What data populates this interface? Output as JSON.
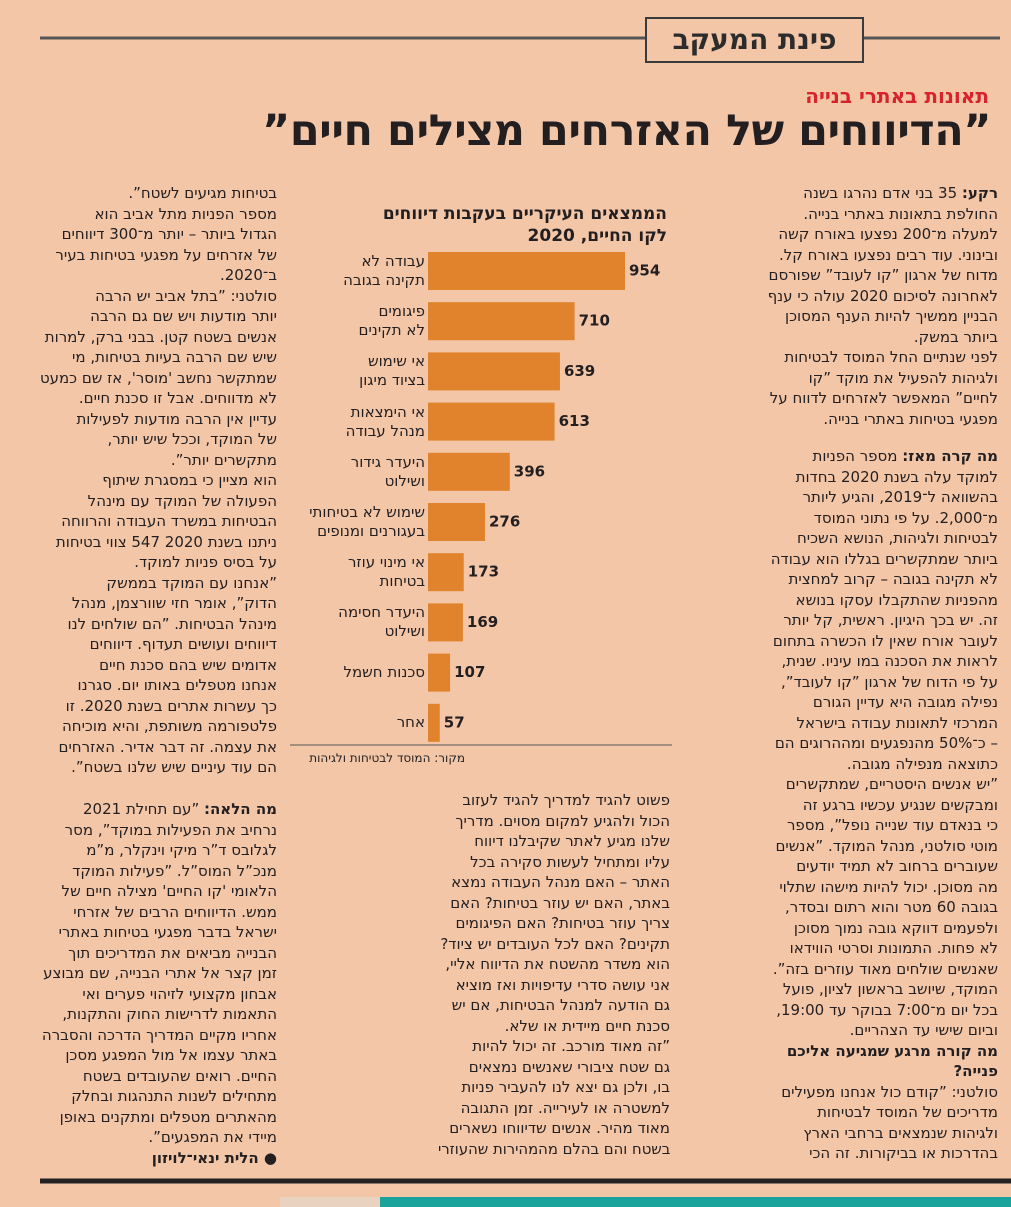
{
  "header": {
    "section": "פינת המעקב",
    "kicker": "תאונות באתרי בנייה",
    "headline": "”הדיווחים של האזרחים מצילים חיים”"
  },
  "chart_data": {
    "type": "bar",
    "orientation": "horizontal",
    "title": "הממצאים העיקריים בעקבות דיווחים\nלקו החיים, 2020",
    "categories": [
      "עבודה לא\nתקינה בגובה",
      "פיגומים\nלא תקינים",
      "אי שימוש\nבציוד מיגון",
      "אי הימצאות\nמנהל עבודה",
      "היעדר גידור\nושילוט",
      "שימוש לא בטיחותי\nבעגורנים ומנופים",
      "אי מינוי עוזר\nבטיחות",
      "היעדר חסימה\nושילוט",
      "סכנות חשמל",
      "אחר"
    ],
    "values": [
      954,
      710,
      639,
      613,
      396,
      276,
      173,
      169,
      107,
      57
    ],
    "color": "#e0832c",
    "source": "מקור: המוסד לבטיחות ולגיהות"
  },
  "columns": {
    "right": [
      {
        "lead": "רקע:",
        "text": " 35 בני אדם נהרגו בשנה"
      },
      "החולפת בתאונות באתרי בנייה.",
      "למעלה מ־200 נפצעו באורח קשה",
      "ובינוני. עוד רבים נפצעו באורח קל.",
      "מדוח של ארגון ”קו לעובד” שפורסם",
      "לאחרונה לסיכום 2020 עולה כי ענף",
      "הבניין ממשיך להיות הענף המסוכן",
      "ביותר במשק.",
      "לפני שנתיים החל המוסד לבטיחות",
      "ולגיהות להפעיל את מוקד ”קו",
      "לחיים” המאפשר לאזרחים לדווח על",
      "מפגעי בטיחות באתרי בנייה.",
      {
        "lead": "מה קרה מאז:",
        "text": " מספר הפניות"
      },
      "למוקד עלה בשנת 2020 בחדות",
      "בהשוואה ל־2019, והגיע ליותר",
      "מ־2,000. על פי נתוני המוסד",
      "לבטיחות ולגיהות, הנושא השכיח",
      "ביותר שמתקשרים בגללו הוא עבודה",
      "לא תקינה בגובה – קרוב למחצית",
      "מהפניות שהתקבלו עסקו בנושא",
      "זה. יש בכך היגיון. ראשית, קל יותר",
      "לעובר אורח שאין לו הכשרה בתחום",
      "לראות את הסכנה במו עיניו. שנית,",
      "על פי הדוח של ארגון ”קו לעובד”,",
      "נפילה מגובה היא עדיין הגורם",
      "המרכזי לתאונות עבודה בישראל",
      "– כ־50% מהנפגעים ומההרוגים הם",
      "כתוצאה מנפילה מגובה.",
      "”יש אנשים היסטריים, שמתקשרים",
      "ומבקשים שנגיע עכשיו ברגע זה",
      "כי בנאדם עוד שנייה נופל”, מספר",
      "מוטי סולטני, מנהל המוקד. ”אנשים",
      "שעוברים ברחוב לא תמיד יודעים",
      "מה מסוכן. יכול להיות מישהו שתלוי",
      "בגובה 60 מטר והוא רתום ובסדר,",
      "ולפעמים דווקא גובה נמוך מסוכן",
      "לא פחות. התמונות וסרטי הווידאו",
      "שאנשים שולחים מאוד עוזרים בזה”.",
      "המוקד, שיושב בראשון לציון, פועל",
      "בכל יום מ־7:00 בבוקר עד 19:00,",
      "וביום שישי עד הצהריים.",
      {
        "lead": "מה קורה מרגע שמגיעה אליכם"
      },
      {
        "lead": "פנייה?"
      },
      "סולטני: ”קודם כול אנחנו מפעילים",
      "מדריכים של המוסד לבטיחות",
      "ולגיהות שנמצאים ברחבי הארץ",
      "בהדרכות או בביקורות. זה הכי"
    ],
    "middle": [
      "פשוט להגיד למדריך להגיד לעזוב",
      "הכול ולהגיע למקום מסוים. מדריך",
      "שלנו מגיע לאתר שקיבלנו דיווח",
      "עליו ומתחיל לעשות סקירה בכל",
      "האתר – האם מנהל העבודה נמצא",
      "באתר, האם יש עוזר בטיחות? האם",
      "צריך עוזר בטיחות? האם הפיגומים",
      "תקינים? האם לכל העובדים יש ציוד?",
      "הוא משדר מהשטח את הדיווח אליי,",
      "אני עושה סדרי עדיפויות ואז מוציא",
      "גם הודעה למנהל הבטיחות, אם יש",
      "סכנת חיים מיידית או שלא.",
      "”זה מאוד מורכב. זה יכול להיות",
      "גם שטח ציבורי שאנשים נמצאים",
      "בו, ולכן גם יצא לנו להעביר פניות",
      "למשטרה או לעירייה. זמן התגובה",
      "מאוד מהיר. אנשים שדיווחו נשארים",
      "בשטח והם בהלם מהמהירות שהעוזרי"
    ],
    "left": [
      "בטיחות מגיעים לשטח”.",
      "מספר הפניות מתל אביב הוא",
      "הגדול ביותר – יותר מ־300 דיווחים",
      "של אזרחים על מפגעי בטיחות בעיר",
      "ב־2020.",
      "סולטני: ”בתל אביב יש הרבה",
      "יותר מודעות ויש שם גם הרבה",
      "אנשים בשטח קטן. בבני ברק, למרות",
      "שיש שם הרבה בעיות בטיחות, מי",
      "שמתקשר נחשב 'מוסר', אז שם כמעט",
      "לא מדווחים. אבל זו סכנת חיים.",
      "עדיין אין הרבה מודעות לפעילות",
      "של המוקד, וככל שיש יותר,",
      "מתקשרים יותר”.",
      "הוא מציין כי במסגרת שיתוף",
      "הפעולה של המוקד עם מינהל",
      "הבטיחות במשרד העבודה והרווחה",
      "ניתנו בשנת 2020 547 צווי בטיחות",
      "על בסיס פניות למוקד.",
      "”אנחנו עם המוקד בממשק",
      "הדוק”, אומר חזי שוורצמן, מנהל",
      "מינהל הבטיחות. ”הם שולחים לנו",
      "דיווחים ועושים תעדוף. דיווחים",
      "אדומים שיש בהם סכנת חיים",
      "אנחנו מטפלים באותו יום. סגרנו",
      "כך עשרות אתרים בשנת 2020. זו",
      "פלטפורמה משותפת, והיא מוכיחה",
      "את עצמה. זה דבר אדיר. האזרחים",
      "הם עוד עיניים שיש שלנו בשטח”.",
      {
        "lead": "מה הלאה:",
        "text": " ”עם תחילת 2021"
      },
      "נרחיב את הפעילות במוקד”, מסר",
      "לגלובס ד”ר מיקי וינקלר, מ”מ",
      "מנכ”ל המוס”ל. ”פעילות המוקד",
      "הלאומי 'קו החיים' מצילה חיים של",
      "ממש. הדיווחים הרבים של אזרחי",
      "ישראל בדבר מפגעי בטיחות באתרי",
      "הבנייה מביאים את המדריכים תוך",
      "זמן קצר אל אתרי הבנייה, שם מבוצע",
      "אבחון מקצועי לזיהוי פערים ואי",
      "התאמות לדרישות החוק והתקנות,",
      "אחריו מקיים המדריך הדרכה והסברה",
      "באתר עצמו אל מול המפגע מסכן",
      "החיים. רואים שהעובדים בשטח",
      "מתחילים לשנות התנהגות ובחלק",
      "מהאתרים מטפלים ומתקנים באופן",
      "מיידי את המפגעים”.",
      {
        "lead": "● הלית ינאי־לויזון"
      }
    ]
  }
}
